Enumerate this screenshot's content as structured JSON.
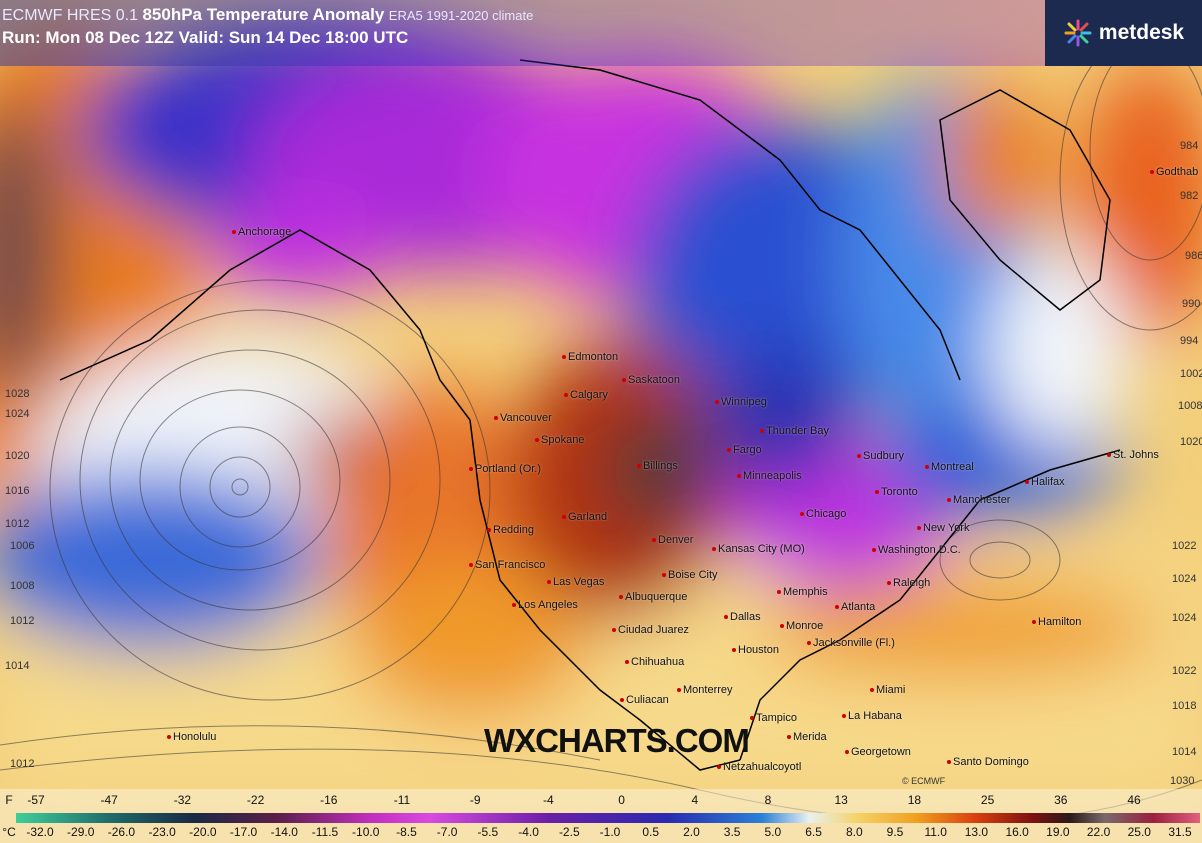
{
  "header": {
    "model": "ECMWF HRES 0.1",
    "field": "850hPa Temperature Anomaly",
    "climate": "ERA5 1991-2020 climate",
    "run": "Run: Mon 08 Dec 12Z Valid: Sun 14 Dec 18:00 UTC"
  },
  "logo": {
    "text": "metdesk",
    "icon": "starburst-icon"
  },
  "watermark": "WXCHARTS.COM",
  "copyright": "© ECMWF",
  "colors": {
    "cold_extreme": "#3fcf9a",
    "magenta": "#c22fbf",
    "blue": "#2a2ab0",
    "neutral": "#e8f0f0",
    "orange": "#f0a020",
    "red": "#d8400e",
    "warm_extreme": "#e06080"
  },
  "cities": [
    "Godthab",
    "Anchorage",
    "Edmonton",
    "Saskatoon",
    "Calgary",
    "Winnipeg",
    "Thunder Bay",
    "Vancouver",
    "Spokane",
    "Fargo",
    "Sudbury",
    "Montreal",
    "St. Johns",
    "Portland (Or.)",
    "Billings",
    "Minneapolis",
    "Toronto",
    "Manchester",
    "Halifax",
    "Redding",
    "Garland",
    "Chicago",
    "New York",
    "Denver",
    "Washington D.C.",
    "Kansas City (MO)",
    "San Francisco",
    "Boise City",
    "Las Vegas",
    "Memphis",
    "Raleigh",
    "Albuquerque",
    "Los Angeles",
    "Atlanta",
    "Dallas",
    "Monroe",
    "Ciudad Juarez",
    "Hamilton",
    "Jacksonville (Fl.)",
    "Houston",
    "Chihuahua",
    "Miami",
    "Monterrey",
    "Culiacan",
    "La Habana",
    "Tampico",
    "Honolulu",
    "Merida",
    "Georgetown",
    "Netzahualcoyotl",
    "Santo Domingo"
  ],
  "isobars": [
    "984",
    "982",
    "986",
    "990",
    "994",
    "1002",
    "1008",
    "1020",
    "1022",
    "1024",
    "1024",
    "1022",
    "1018",
    "1014",
    "1030",
    "1028",
    "1024",
    "1020",
    "1016",
    "1012",
    "1006",
    "1008",
    "1012",
    "1014",
    "1012"
  ],
  "colorbar": {
    "f_label": "F",
    "f_ticks": [
      "-57",
      "-47",
      "-32",
      "-22",
      "-16",
      "-11",
      "-9",
      "-4",
      "0",
      "4",
      "8",
      "13",
      "18",
      "25",
      "36",
      "46"
    ],
    "c_label": "°C",
    "c_ticks": [
      "-32.0",
      "-29.0",
      "-26.0",
      "-23.0",
      "-20.0",
      "-17.0",
      "-14.0",
      "-11.5",
      "-10.0",
      "-8.5",
      "-7.0",
      "-5.5",
      "-4.0",
      "-2.5",
      "-1.0",
      "0.5",
      "2.0",
      "3.5",
      "5.0",
      "6.5",
      "8.0",
      "9.5",
      "11.0",
      "13.0",
      "16.0",
      "19.0",
      "22.0",
      "25.0",
      "31.5"
    ]
  }
}
